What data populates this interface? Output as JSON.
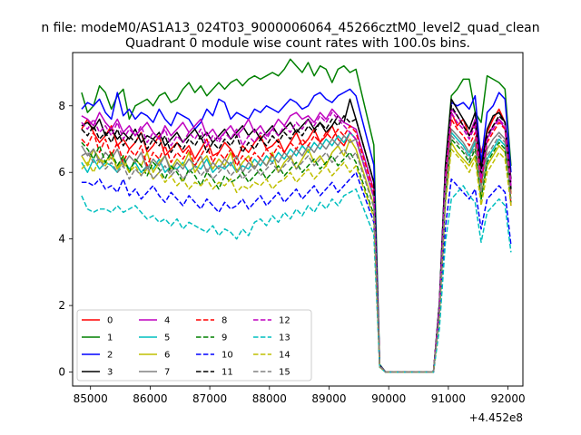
{
  "figure": {
    "suptitle": "n file: modeM0/AS1A13_024T03_9000006064_45266cztM0_level2_quad_clean",
    "title": "Quadrant 0 module wise count rates with 100.0s bins."
  },
  "chart_data": {
    "type": "line",
    "title": "Quadrant 0 module wise count rates with 100.0s bins.",
    "xlabel": "",
    "ylabel": "",
    "x_offset_label": "+4.452e8",
    "xlim": [
      84700,
      92250
    ],
    "ylim": [
      -0.42,
      9.6
    ],
    "xticks": [
      85000,
      86000,
      87000,
      88000,
      89000,
      90000,
      91000,
      92000
    ],
    "xtick_labels": [
      "85000",
      "86000",
      "87000",
      "88000",
      "89000",
      "90000",
      "91000",
      "92000"
    ],
    "yticks": [
      0,
      2,
      4,
      6,
      8
    ],
    "ytick_labels": [
      "0",
      "2",
      "4",
      "6",
      "8"
    ],
    "grid": false,
    "legend": {
      "position": "lower-left",
      "columns": 4
    },
    "series": [
      {
        "name": "0",
        "color": "#ff0000",
        "style": "solid",
        "pre": [
          7.3,
          7.6,
          7.2,
          6.9,
          7.1,
          7.4,
          6.8,
          7.0,
          6.7,
          6.9,
          7.2,
          6.6,
          6.8,
          7.1,
          6.5,
          6.7,
          6.9,
          6.6,
          6.8,
          6.4,
          6.7,
          7.0,
          6.5,
          6.6,
          6.9,
          6.7,
          6.4,
          6.8,
          6.6,
          6.9,
          7.1,
          6.7,
          6.8,
          7.0,
          6.6,
          6.9,
          7.2,
          6.8,
          7.0,
          7.3,
          6.9,
          7.1,
          7.4,
          7.0,
          6.8,
          7.2,
          7.0
        ],
        "post": [
          7.8,
          7.4,
          7.6,
          7.1,
          7.5,
          6.6,
          7.2,
          7.6,
          7.9,
          7.5,
          5.0
        ]
      },
      {
        "name": "1",
        "color": "#008000",
        "style": "solid",
        "pre": [
          8.4,
          7.8,
          8.0,
          8.6,
          8.4,
          7.9,
          8.3,
          8.5,
          7.6,
          8.0,
          8.1,
          8.2,
          8.0,
          8.3,
          8.4,
          8.1,
          8.2,
          8.5,
          8.7,
          8.4,
          8.6,
          8.3,
          8.5,
          8.7,
          8.5,
          8.7,
          8.8,
          8.6,
          8.8,
          8.9,
          8.8,
          8.9,
          9.0,
          8.9,
          9.1,
          9.4,
          9.2,
          9.0,
          9.3,
          8.9,
          9.2,
          9.1,
          8.7,
          9.1,
          9.2,
          9.0,
          9.1
        ],
        "post": [
          8.3,
          8.5,
          8.8,
          8.8,
          7.8,
          7.5,
          8.9,
          8.8,
          8.7,
          8.5,
          6.2
        ]
      },
      {
        "name": "2",
        "color": "#0000ff",
        "style": "solid",
        "pre": [
          7.9,
          8.1,
          8.0,
          8.2,
          7.8,
          7.6,
          8.4,
          7.7,
          7.9,
          7.6,
          7.8,
          7.7,
          7.5,
          7.9,
          7.6,
          7.4,
          7.8,
          7.7,
          7.6,
          7.3,
          7.5,
          7.9,
          7.7,
          8.2,
          8.1,
          7.6,
          7.8,
          7.7,
          7.6,
          7.9,
          7.8,
          8.0,
          7.9,
          7.8,
          8.0,
          8.2,
          8.1,
          7.9,
          8.0,
          8.3,
          8.4,
          8.2,
          8.1,
          8.3,
          8.4,
          8.5,
          8.3
        ],
        "post": [
          8.1,
          8.0,
          8.1,
          7.9,
          8.3,
          6.3,
          7.8,
          8.0,
          8.4,
          8.2,
          6.0
        ]
      },
      {
        "name": "3",
        "color": "#000000",
        "style": "solid",
        "pre": [
          7.4,
          7.5,
          7.3,
          7.6,
          7.1,
          7.3,
          7.0,
          7.2,
          7.0,
          7.3,
          6.9,
          7.1,
          7.0,
          7.2,
          6.8,
          7.0,
          7.2,
          6.9,
          7.1,
          7.3,
          7.0,
          7.2,
          6.9,
          7.1,
          7.3,
          7.0,
          7.2,
          7.4,
          7.1,
          7.3,
          7.0,
          7.2,
          7.4,
          7.1,
          7.3,
          7.5,
          7.2,
          7.4,
          7.6,
          7.3,
          7.5,
          7.2,
          7.4,
          7.7,
          7.5,
          8.2,
          7.6
        ],
        "post": [
          8.2,
          7.9,
          7.6,
          7.3,
          7.8,
          6.1,
          7.3,
          7.7,
          7.8,
          7.5,
          5.8
        ]
      },
      {
        "name": "4",
        "color": "#bf00bf",
        "style": "solid",
        "pre": [
          7.7,
          7.6,
          7.4,
          7.8,
          7.5,
          7.3,
          7.6,
          7.2,
          7.4,
          7.1,
          7.3,
          7.5,
          7.2,
          7.0,
          7.4,
          7.1,
          7.3,
          7.5,
          7.2,
          7.4,
          7.6,
          7.1,
          7.3,
          7.0,
          7.2,
          7.4,
          7.1,
          7.3,
          7.6,
          7.2,
          7.4,
          7.1,
          7.3,
          7.6,
          7.4,
          7.7,
          7.8,
          7.6,
          7.7,
          7.5,
          7.8,
          7.6,
          7.9,
          7.7,
          7.5,
          7.4,
          7.3
        ],
        "post": [
          7.9,
          7.7,
          7.4,
          7.1,
          7.6,
          5.8,
          7.0,
          7.4,
          7.6,
          7.3,
          5.7
        ]
      },
      {
        "name": "5",
        "color": "#00bfbf",
        "style": "solid",
        "pre": [
          6.3,
          6.0,
          6.4,
          6.1,
          6.3,
          6.2,
          6.0,
          6.4,
          6.1,
          6.3,
          6.0,
          6.2,
          6.1,
          6.4,
          6.0,
          6.2,
          6.1,
          6.3,
          6.0,
          6.2,
          6.1,
          6.4,
          6.0,
          6.2,
          6.1,
          6.3,
          6.0,
          6.2,
          6.1,
          6.4,
          6.2,
          6.5,
          6.3,
          6.6,
          6.4,
          6.7,
          6.5,
          6.8,
          6.6,
          6.9,
          6.7,
          7.0,
          6.8,
          7.1,
          6.9,
          7.2,
          7.0
        ],
        "post": [
          7.2,
          7.0,
          6.8,
          6.5,
          6.9,
          5.2,
          6.4,
          6.7,
          7.0,
          6.8,
          5.4
        ]
      },
      {
        "name": "6",
        "color": "#bfbf00",
        "style": "solid",
        "pre": [
          6.5,
          6.2,
          6.7,
          6.4,
          6.3,
          6.6,
          6.1,
          6.5,
          6.0,
          6.4,
          6.2,
          6.6,
          6.0,
          6.3,
          6.5,
          6.1,
          6.4,
          6.2,
          6.6,
          6.0,
          6.3,
          6.5,
          6.1,
          6.4,
          6.2,
          6.6,
          6.0,
          6.3,
          6.5,
          6.1,
          6.4,
          6.2,
          6.6,
          6.0,
          6.3,
          6.5,
          6.1,
          6.4,
          6.7,
          6.3,
          6.5,
          6.2,
          6.6,
          6.8,
          6.5,
          7.0,
          6.7
        ],
        "post": [
          6.9,
          6.6,
          6.4,
          6.2,
          6.5,
          5.3,
          6.2,
          6.5,
          6.8,
          6.6,
          5.4
        ]
      },
      {
        "name": "7",
        "color": "#808080",
        "style": "solid",
        "pre": [
          6.8,
          6.5,
          6.7,
          6.3,
          6.6,
          6.4,
          6.7,
          6.2,
          6.5,
          6.3,
          6.6,
          6.1,
          6.4,
          6.2,
          6.5,
          6.0,
          6.3,
          6.1,
          6.4,
          6.2,
          6.5,
          6.0,
          6.3,
          6.1,
          6.4,
          6.2,
          6.5,
          6.0,
          6.3,
          6.1,
          6.4,
          6.2,
          6.5,
          6.3,
          6.6,
          6.4,
          6.7,
          6.5,
          6.8,
          6.6,
          6.9,
          6.7,
          7.0,
          6.8,
          7.1,
          6.9,
          7.0
        ],
        "post": [
          7.3,
          7.1,
          6.9,
          6.6,
          7.0,
          5.6,
          6.7,
          7.0,
          7.2,
          7.0,
          5.5
        ]
      },
      {
        "name": "8",
        "color": "#ff0000",
        "style": "dashed",
        "pre": [
          7.0,
          6.8,
          7.2,
          6.6,
          7.0,
          6.5,
          6.9,
          6.3,
          6.7,
          6.5,
          6.8,
          6.2,
          6.6,
          6.4,
          6.8,
          6.3,
          6.6,
          6.4,
          6.7,
          6.2,
          6.5,
          6.8,
          6.3,
          6.6,
          6.4,
          6.7,
          6.2,
          6.5,
          6.3,
          6.6,
          6.4,
          6.7,
          6.5,
          6.8,
          6.6,
          6.9,
          6.7,
          7.0,
          6.8,
          7.1,
          6.9,
          7.2,
          7.0,
          7.3,
          7.1,
          7.4,
          7.2
        ],
        "post": [
          7.6,
          7.3,
          7.1,
          6.8,
          7.2,
          5.7,
          6.9,
          7.2,
          7.5,
          7.3,
          5.3
        ]
      },
      {
        "name": "9",
        "color": "#008000",
        "style": "dashed",
        "pre": [
          6.9,
          6.7,
          6.4,
          6.8,
          6.3,
          6.6,
          6.2,
          6.5,
          6.0,
          6.4,
          6.2,
          5.9,
          6.3,
          6.1,
          5.8,
          6.2,
          6.0,
          5.7,
          6.1,
          5.9,
          5.6,
          6.0,
          5.8,
          5.5,
          5.9,
          5.7,
          5.8,
          6.0,
          5.7,
          5.9,
          6.1,
          5.8,
          6.0,
          6.2,
          5.9,
          6.1,
          6.3,
          6.0,
          6.2,
          6.4,
          6.1,
          6.3,
          6.5,
          6.2,
          6.4,
          6.6,
          6.3
        ],
        "post": [
          7.0,
          6.8,
          6.6,
          6.3,
          6.7,
          5.2,
          6.3,
          6.6,
          6.9,
          6.7,
          5.1
        ]
      },
      {
        "name": "10",
        "color": "#0000ff",
        "style": "dashed",
        "pre": [
          5.7,
          5.7,
          5.6,
          5.8,
          5.5,
          5.6,
          5.4,
          5.8,
          5.3,
          5.5,
          5.2,
          5.4,
          5.6,
          5.3,
          5.1,
          5.4,
          5.2,
          5.0,
          5.3,
          5.1,
          4.9,
          5.2,
          5.0,
          4.8,
          5.1,
          4.9,
          5.0,
          5.2,
          4.9,
          5.1,
          5.3,
          5.0,
          5.2,
          5.4,
          5.1,
          5.3,
          5.5,
          5.2,
          5.4,
          5.6,
          5.3,
          5.5,
          5.7,
          5.4,
          5.6,
          5.8,
          6.0
        ],
        "post": [
          5.8,
          5.6,
          5.4,
          5.2,
          5.5,
          4.3,
          5.2,
          5.4,
          5.6,
          5.4,
          3.8
        ]
      },
      {
        "name": "11",
        "color": "#000000",
        "style": "dashed",
        "pre": [
          7.3,
          7.1,
          7.4,
          7.0,
          7.2,
          6.9,
          7.3,
          6.8,
          7.1,
          6.9,
          7.2,
          6.7,
          7.0,
          6.8,
          7.1,
          6.6,
          6.9,
          6.7,
          7.0,
          6.8,
          7.1,
          6.6,
          6.9,
          6.7,
          7.0,
          6.8,
          7.1,
          6.6,
          6.9,
          6.7,
          7.0,
          6.8,
          7.1,
          6.9,
          7.2,
          7.0,
          7.3,
          7.1,
          7.4,
          7.2,
          7.5,
          7.3,
          7.6,
          7.4,
          7.7,
          7.5,
          7.6
        ],
        "post": [
          8.0,
          7.7,
          7.4,
          7.1,
          7.5,
          5.9,
          7.1,
          7.4,
          7.7,
          7.5,
          5.5
        ]
      },
      {
        "name": "12",
        "color": "#bf00bf",
        "style": "dashed",
        "pre": [
          7.5,
          7.3,
          7.6,
          7.2,
          7.4,
          7.1,
          7.5,
          7.0,
          7.3,
          7.1,
          7.4,
          6.9,
          7.2,
          7.0,
          7.3,
          6.8,
          7.1,
          6.9,
          7.2,
          7.0,
          7.3,
          6.8,
          7.1,
          6.9,
          7.2,
          7.0,
          7.3,
          6.8,
          7.1,
          6.9,
          7.2,
          7.0,
          7.3,
          7.1,
          7.4,
          7.2,
          7.5,
          7.3,
          7.6,
          7.4,
          7.7,
          7.5,
          7.8,
          7.6,
          7.4,
          7.2,
          7.0
        ],
        "post": [
          7.8,
          7.5,
          7.3,
          7.0,
          7.4,
          5.8,
          7.0,
          7.3,
          7.6,
          7.4,
          5.6
        ]
      },
      {
        "name": "13",
        "color": "#00bfbf",
        "style": "dashed",
        "pre": [
          5.3,
          4.9,
          4.8,
          4.9,
          4.9,
          4.8,
          5.0,
          4.8,
          4.9,
          5.0,
          4.8,
          4.6,
          4.7,
          4.5,
          4.6,
          4.4,
          4.6,
          4.3,
          4.5,
          4.4,
          4.3,
          4.2,
          4.4,
          4.1,
          4.3,
          4.2,
          4.0,
          4.3,
          4.1,
          4.5,
          4.6,
          4.4,
          4.7,
          4.5,
          4.8,
          4.6,
          4.9,
          4.7,
          5.0,
          4.8,
          5.1,
          4.9,
          5.2,
          5.0,
          5.3,
          5.4,
          5.5
        ],
        "post": [
          5.2,
          5.4,
          5.6,
          5.3,
          5.1,
          3.9,
          4.8,
          5.0,
          5.2,
          5.0,
          3.6
        ]
      },
      {
        "name": "14",
        "color": "#bfbf00",
        "style": "dashed",
        "pre": [
          6.1,
          6.3,
          6.0,
          6.4,
          6.2,
          6.5,
          6.1,
          6.3,
          6.0,
          6.2,
          5.9,
          6.1,
          5.8,
          6.0,
          5.7,
          5.9,
          5.6,
          5.8,
          5.5,
          5.7,
          5.6,
          5.8,
          5.5,
          5.7,
          5.6,
          5.8,
          5.4,
          5.6,
          5.5,
          5.7,
          5.6,
          5.8,
          5.5,
          5.7,
          5.8,
          6.0,
          5.7,
          5.9,
          6.1,
          5.8,
          6.0,
          6.2,
          5.9,
          6.1,
          6.3,
          6.0,
          6.2
        ],
        "post": [
          6.7,
          6.5,
          6.3,
          6.0,
          6.4,
          5.0,
          6.0,
          6.3,
          6.6,
          6.4,
          5.0
        ]
      },
      {
        "name": "15",
        "color": "#808080",
        "style": "dashed",
        "pre": [
          6.5,
          6.6,
          6.3,
          6.4,
          6.1,
          6.3,
          6.0,
          6.2,
          5.8,
          6.1,
          5.9,
          6.2,
          5.8,
          6.0,
          6.2,
          5.9,
          6.1,
          5.8,
          6.0,
          6.2,
          5.9,
          6.1,
          5.8,
          6.0,
          6.2,
          5.9,
          6.1,
          5.8,
          6.0,
          6.2,
          5.9,
          6.1,
          6.3,
          6.0,
          6.2,
          6.4,
          6.1,
          6.3,
          6.5,
          6.2,
          6.4,
          6.6,
          6.3,
          6.5,
          6.7,
          6.4,
          6.6
        ],
        "post": [
          7.1,
          6.9,
          6.7,
          6.4,
          6.8,
          5.4,
          6.5,
          6.8,
          7.1,
          6.9,
          5.2
        ]
      }
    ]
  }
}
